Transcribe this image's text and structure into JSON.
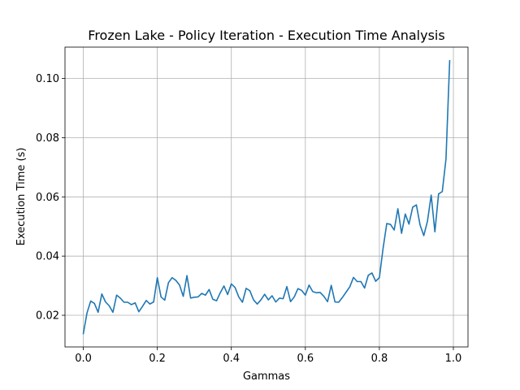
{
  "chart_data": {
    "type": "line",
    "title": "Frozen Lake - Policy Iteration - Execution Time Analysis",
    "xlabel": "Gammas",
    "ylabel": "Execution Time (s)",
    "xlim": [
      -0.0495,
      1.0395
    ],
    "ylim": [
      0.0093,
      0.1106
    ],
    "xticks": [
      0.0,
      0.2,
      0.4,
      0.6,
      0.8,
      1.0
    ],
    "xtick_labels": [
      "0.0",
      "0.2",
      "0.4",
      "0.6",
      "0.8",
      "1.0"
    ],
    "yticks": [
      0.02,
      0.04,
      0.06,
      0.08,
      0.1
    ],
    "ytick_labels": [
      "0.02",
      "0.04",
      "0.06",
      "0.08",
      "0.10"
    ],
    "grid": true,
    "line_color": "#1f77b4",
    "x": [
      0.0,
      0.01,
      0.02,
      0.03,
      0.04,
      0.05,
      0.06,
      0.07,
      0.08,
      0.09,
      0.1,
      0.11,
      0.12,
      0.13,
      0.14,
      0.15,
      0.16,
      0.17,
      0.18,
      0.19,
      0.2,
      0.21,
      0.22,
      0.23,
      0.24,
      0.25,
      0.26,
      0.27,
      0.28,
      0.29,
      0.3,
      0.31,
      0.32,
      0.33,
      0.34,
      0.35,
      0.36,
      0.37,
      0.38,
      0.39,
      0.4,
      0.41,
      0.42,
      0.43,
      0.44,
      0.45,
      0.46,
      0.47,
      0.48,
      0.49,
      0.5,
      0.51,
      0.52,
      0.53,
      0.54,
      0.55,
      0.56,
      0.57,
      0.58,
      0.59,
      0.6,
      0.61,
      0.62,
      0.63,
      0.64,
      0.65,
      0.66,
      0.67,
      0.68,
      0.69,
      0.7,
      0.71,
      0.72,
      0.73,
      0.74,
      0.75,
      0.76,
      0.77,
      0.78,
      0.79,
      0.8,
      0.81,
      0.82,
      0.83,
      0.84,
      0.85,
      0.86,
      0.87,
      0.88,
      0.89,
      0.9,
      0.91,
      0.92,
      0.93,
      0.94,
      0.95,
      0.96,
      0.97,
      0.98,
      0.99
    ],
    "y": [
      0.0138,
      0.0208,
      0.0248,
      0.024,
      0.021,
      0.0272,
      0.0245,
      0.0232,
      0.021,
      0.0268,
      0.0258,
      0.0244,
      0.0244,
      0.0236,
      0.0242,
      0.0212,
      0.023,
      0.025,
      0.0238,
      0.0245,
      0.0327,
      0.0262,
      0.0251,
      0.031,
      0.0327,
      0.0318,
      0.0302,
      0.0264,
      0.0334,
      0.0258,
      0.0261,
      0.0262,
      0.0274,
      0.0268,
      0.0287,
      0.0254,
      0.0249,
      0.0276,
      0.0299,
      0.027,
      0.0306,
      0.0294,
      0.0262,
      0.0244,
      0.0291,
      0.0283,
      0.0252,
      0.0238,
      0.0252,
      0.0271,
      0.0252,
      0.0266,
      0.0245,
      0.0258,
      0.0256,
      0.0297,
      0.0246,
      0.0262,
      0.029,
      0.0284,
      0.0268,
      0.0302,
      0.028,
      0.0276,
      0.0277,
      0.0264,
      0.0246,
      0.0301,
      0.0245,
      0.0244,
      0.026,
      0.0278,
      0.0296,
      0.0328,
      0.0314,
      0.0314,
      0.0292,
      0.0335,
      0.0343,
      0.0315,
      0.0327,
      0.0426,
      0.051,
      0.0507,
      0.0488,
      0.056,
      0.0477,
      0.0542,
      0.0508,
      0.0565,
      0.0573,
      0.0505,
      0.0469,
      0.0518,
      0.0606,
      0.0482,
      0.061,
      0.0618,
      0.0728,
      0.106
    ]
  }
}
